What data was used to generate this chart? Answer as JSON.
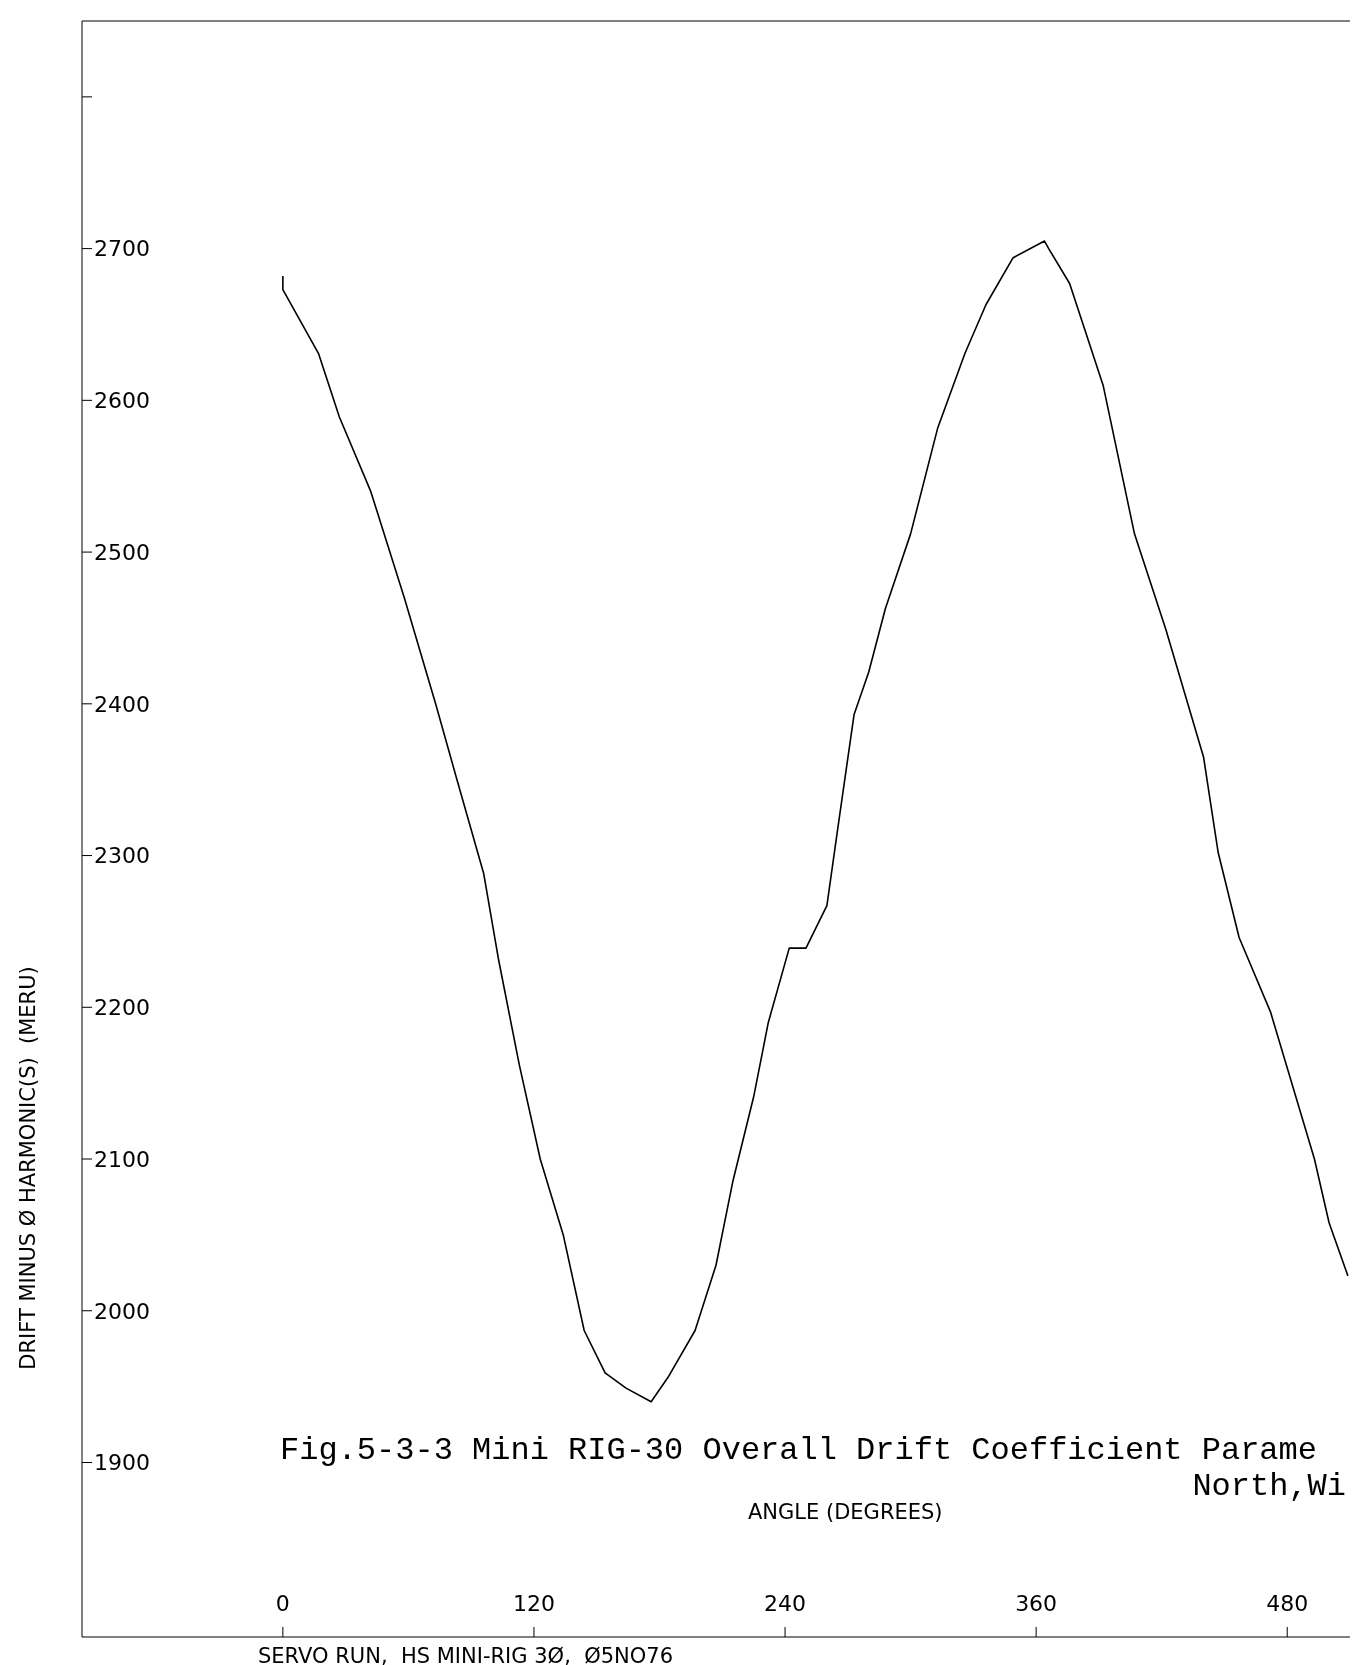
{
  "chart_data": {
    "type": "line",
    "xlabel": "ANGLE (DEGREES)",
    "ylabel": "DRIFT MINUS Ø HARMONIC(S)  (MERU)",
    "annotations": [
      "Fig.5-3-3 Mini RIG-30 Overall Drift Coefficient Parame",
      "North,Wi",
      "SERVO RUN,  HS MINI-RIG 3Ø,  Ø5NO76"
    ],
    "xlim": [
      -96,
      510
    ],
    "xticks": [
      0,
      120,
      240,
      360,
      480
    ],
    "ylim": [
      1785,
      2850
    ],
    "yticks": [
      1900,
      2000,
      2100,
      2200,
      2300,
      2400,
      2500,
      2600,
      2700,
      {
        "value": 2800,
        "label": null
      }
    ],
    "grid": false,
    "legend": false,
    "marker": "none",
    "line_style": "solid",
    "series": [
      {
        "color": "#000000",
        "x": [
          0,
          0,
          17,
          27,
          42,
          58,
          73,
          83,
          96,
          103,
          113,
          123,
          134,
          144,
          154,
          164,
          176,
          184,
          197,
          207,
          215,
          225,
          232,
          242,
          250,
          260,
          265,
          273,
          280,
          288,
          300,
          313,
          326,
          336,
          349,
          364,
          366,
          376,
          392,
          407,
          422,
          440,
          447,
          457,
          472,
          493,
          500,
          509
        ],
        "values": [
          2682,
          2673,
          2631,
          2589,
          2540,
          2470,
          2400,
          2351,
          2288,
          2232,
          2162,
          2100,
          2050,
          1987,
          1959,
          1949,
          1940,
          1956,
          1987,
          2030,
          2085,
          2141,
          2190,
          2239,
          2239,
          2267,
          2316,
          2393,
          2421,
          2463,
          2512,
          2582,
          2631,
          2663,
          2694,
          2705,
          2700,
          2677,
          2610,
          2512,
          2449,
          2365,
          2302,
          2246,
          2197,
          2100,
          2058,
          2023
        ]
      }
    ]
  }
}
